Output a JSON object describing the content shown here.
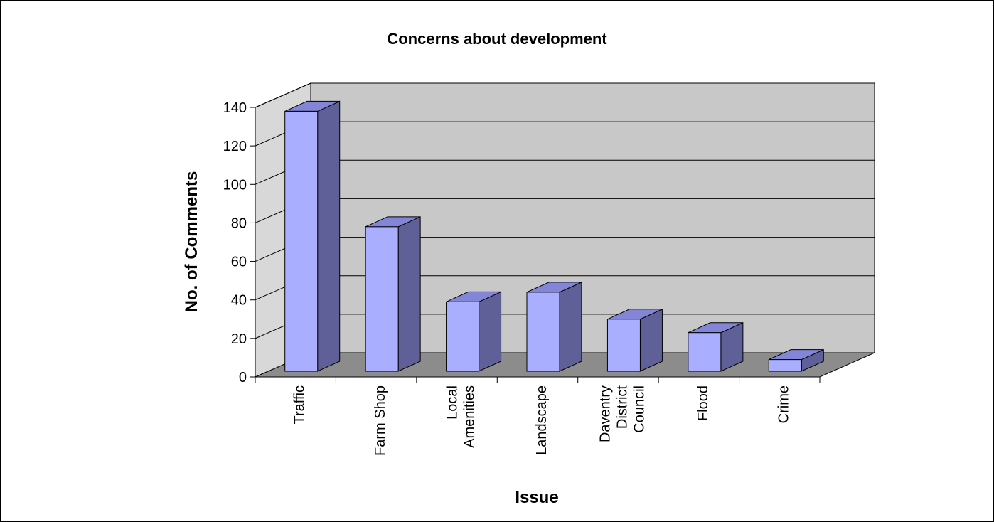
{
  "chart_data": {
    "type": "bar",
    "title": "Concerns about development",
    "xlabel": "Issue",
    "ylabel": "No. of Comments",
    "categories": [
      "Traffic",
      "Farm Shop",
      "Local Amenities",
      "Landscape",
      "Daventry District Council",
      "Flood",
      "Crime"
    ],
    "category_lines": [
      [
        "Traffic"
      ],
      [
        "Farm Shop"
      ],
      [
        "Local",
        "Amenities"
      ],
      [
        "Landscape"
      ],
      [
        "Daventry",
        "District",
        "Council"
      ],
      [
        "Flood"
      ],
      [
        "Crime"
      ]
    ],
    "values": [
      138,
      78,
      39,
      44,
      30,
      23,
      9
    ],
    "ylim": [
      0,
      140
    ],
    "yticks": [
      "0",
      "20",
      "40",
      "60",
      "80",
      "100",
      "120",
      "140"
    ],
    "grid": true,
    "legend": "none",
    "colors": {
      "bar_front": "#a9aefe",
      "bar_side": "#5f6098",
      "bar_top": "#8386d6",
      "back_wall": "#c8c8c8",
      "side_wall": "#d8d8d8",
      "floor": "#8c8c8c"
    }
  }
}
